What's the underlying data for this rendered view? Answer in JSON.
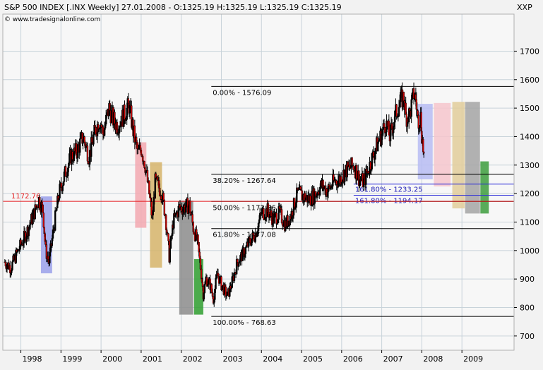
{
  "header": {
    "title": "S&P 500 INDEX [.INX  Weekly] 27.01.2008 - O:1325.19 H:1325.19 L:1325.19 C:1325.19",
    "watermark": "© www.tradesignalonline.com",
    "axis_unit": "XXP"
  },
  "chart_data": {
    "type": "candlestick",
    "ylim": [
      650,
      1830
    ],
    "grid": true,
    "x_axis": {
      "tick_labels": [
        "1998",
        "1999",
        "2000",
        "2001",
        "2002",
        "2003",
        "2004",
        "2005",
        "2006",
        "2007",
        "2008",
        "2009"
      ],
      "tick_positions": [
        1998.0,
        1999.0,
        2000.0,
        2001.0,
        2002.0,
        2003.0,
        2004.0,
        2005.0,
        2006.0,
        2007.0,
        2008.0,
        2009.0
      ],
      "range": [
        1997.55,
        2010.3
      ]
    },
    "y_axis": {
      "tick_values": [
        700,
        800,
        900,
        1000,
        1100,
        1200,
        1300,
        1400,
        1500,
        1600,
        1700
      ]
    },
    "series": [
      {
        "kind": "price",
        "points": [
          [
            1997.6,
            960
          ],
          [
            1997.75,
            940
          ],
          [
            1997.9,
            990
          ],
          [
            1998.1,
            1050
          ],
          [
            1998.3,
            1120
          ],
          [
            1998.45,
            1180
          ],
          [
            1998.55,
            1140
          ],
          [
            1998.62,
            1000
          ],
          [
            1998.7,
            960
          ],
          [
            1998.8,
            1060
          ],
          [
            1998.95,
            1200
          ],
          [
            1999.1,
            1270
          ],
          [
            1999.25,
            1330
          ],
          [
            1999.4,
            1350
          ],
          [
            1999.55,
            1400
          ],
          [
            1999.7,
            1330
          ],
          [
            1999.85,
            1420
          ],
          [
            1999.97,
            1460
          ],
          [
            2000.05,
            1410
          ],
          [
            2000.2,
            1500
          ],
          [
            2000.3,
            1460
          ],
          [
            2000.4,
            1440
          ],
          [
            2000.55,
            1470
          ],
          [
            2000.7,
            1510
          ],
          [
            2000.8,
            1420
          ],
          [
            2000.92,
            1340
          ],
          [
            2001.0,
            1360
          ],
          [
            2001.1,
            1300
          ],
          [
            2001.2,
            1200
          ],
          [
            2001.28,
            1110
          ],
          [
            2001.35,
            1240
          ],
          [
            2001.5,
            1210
          ],
          [
            2001.6,
            1130
          ],
          [
            2001.7,
            980
          ],
          [
            2001.8,
            1100
          ],
          [
            2001.95,
            1150
          ],
          [
            2002.05,
            1150
          ],
          [
            2002.2,
            1160
          ],
          [
            2002.3,
            1080
          ],
          [
            2002.4,
            1030
          ],
          [
            2002.5,
            920
          ],
          [
            2002.55,
            850
          ],
          [
            2002.62,
            900
          ],
          [
            2002.72,
            880
          ],
          [
            2002.8,
            830
          ],
          [
            2002.9,
            920
          ],
          [
            2003.0,
            880
          ],
          [
            2003.15,
            840
          ],
          [
            2003.25,
            880
          ],
          [
            2003.4,
            960
          ],
          [
            2003.55,
            990
          ],
          [
            2003.7,
            1030
          ],
          [
            2003.85,
            1060
          ],
          [
            2004.0,
            1130
          ],
          [
            2004.15,
            1140
          ],
          [
            2004.3,
            1110
          ],
          [
            2004.45,
            1130
          ],
          [
            2004.6,
            1090
          ],
          [
            2004.75,
            1130
          ],
          [
            2004.9,
            1200
          ],
          [
            2005.05,
            1190
          ],
          [
            2005.2,
            1180
          ],
          [
            2005.35,
            1200
          ],
          [
            2005.5,
            1230
          ],
          [
            2005.65,
            1210
          ],
          [
            2005.8,
            1240
          ],
          [
            2005.95,
            1250
          ],
          [
            2006.1,
            1280
          ],
          [
            2006.3,
            1300
          ],
          [
            2006.45,
            1250
          ],
          [
            2006.55,
            1240
          ],
          [
            2006.7,
            1300
          ],
          [
            2006.85,
            1360
          ],
          [
            2007.0,
            1410
          ],
          [
            2007.1,
            1450
          ],
          [
            2007.2,
            1400
          ],
          [
            2007.35,
            1480
          ],
          [
            2007.45,
            1520
          ],
          [
            2007.55,
            1540
          ],
          [
            2007.6,
            1470
          ],
          [
            2007.7,
            1480
          ],
          [
            2007.8,
            1550
          ],
          [
            2007.85,
            1530
          ],
          [
            2007.9,
            1460
          ],
          [
            2007.97,
            1470
          ],
          [
            2008.0,
            1410
          ],
          [
            2008.05,
            1330
          ]
        ]
      }
    ],
    "fibonacci": {
      "levels": [
        {
          "label": "0.00% - 1576.09",
          "value": 1576.09
        },
        {
          "label": "38.20% - 1267.64",
          "value": 1267.64
        },
        {
          "label": "50.00% - 1172.36",
          "value": 1172.36
        },
        {
          "label": "61.80% - 1077.08",
          "value": 1077.08
        },
        {
          "label": "100.00% - 768.63",
          "value": 768.63
        }
      ],
      "extensions": [
        {
          "label": "161.80% - 1233.25",
          "value": 1233.25
        },
        {
          "label": "161.80% - 1194.17",
          "value": 1194.17
        }
      ],
      "start_x": 2002.75,
      "end_x": 2010.3
    },
    "horizontal_line": {
      "label": "1172.76",
      "value": 1172.76,
      "color": "#e41a1c"
    },
    "zones": [
      {
        "x": [
          1998.5,
          1998.78
        ],
        "y": [
          1190,
          920
        ],
        "color": "#9aa0ea"
      },
      {
        "x": [
          2000.85,
          2001.13
        ],
        "y": [
          1380,
          1080
        ],
        "color": "#f3a8b0"
      },
      {
        "x": [
          2001.22,
          2001.52
        ],
        "y": [
          1310,
          940
        ],
        "color": "#d6b46a"
      },
      {
        "x": [
          2001.95,
          2002.3
        ],
        "y": [
          1175,
          775
        ],
        "color": "#8c8c8c"
      },
      {
        "x": [
          2002.32,
          2002.55
        ],
        "y": [
          970,
          775
        ],
        "color": "#2e9e2e"
      },
      {
        "x": [
          2007.9,
          2008.27
        ],
        "y": [
          1515,
          1250
        ],
        "color": "#b7bcf3"
      },
      {
        "x": [
          2008.3,
          2008.72
        ],
        "y": [
          1518,
          1225
        ],
        "color": "#f6c5cc"
      },
      {
        "x": [
          2008.76,
          2009.07
        ],
        "y": [
          1522,
          1148
        ],
        "color": "#e2cd9a"
      },
      {
        "x": [
          2009.08,
          2009.45
        ],
        "y": [
          1522,
          1130
        ],
        "color": "#a5a5a5"
      },
      {
        "x": [
          2009.46,
          2009.67
        ],
        "y": [
          1313,
          1130
        ],
        "color": "#3d9e3d"
      }
    ]
  },
  "colors": {
    "background": "#f2f2f2",
    "plot_bg": "#f7f7f7",
    "grid": "#c8d3da",
    "axis": "#000000",
    "candle_up": "#000000",
    "candle_down": "#cc0000",
    "fib_line": "#000000",
    "fib_ext_line": "#2b2bd8",
    "fib_ext_text": "#2020b8"
  }
}
